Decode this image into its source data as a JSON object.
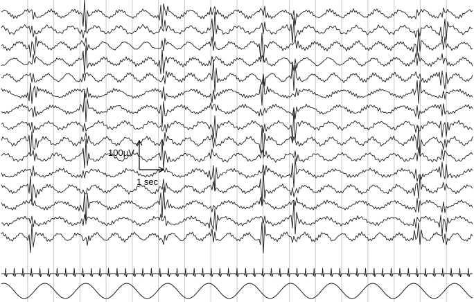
{
  "chart_data": {
    "type": "line",
    "title": "",
    "xlabel": "",
    "ylabel": "",
    "grid": true,
    "seconds_shown": 18,
    "eeg_channel_count": 15,
    "scale_bar": {
      "amplitude_label": "100µV",
      "time_label": "1 sec"
    },
    "extra_channels": [
      "ecg",
      "respiration"
    ],
    "ecg_beats": 55,
    "respiration_cycles": 11.5,
    "discharge_times_sec": [
      1.2,
      3.2,
      6.2,
      8.1,
      10.0,
      11.2,
      15.9,
      16.9
    ],
    "colors": {
      "trace": "#1a1a1a",
      "grid": "#c8c8c8",
      "background": "#ffffff"
    }
  }
}
